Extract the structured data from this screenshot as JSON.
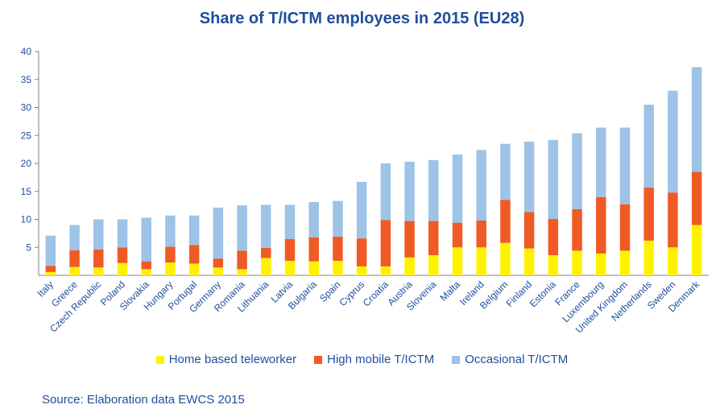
{
  "chart_data": {
    "type": "bar",
    "stacked": true,
    "title": "Share of T/ICTM employees in 2015 (EU28)",
    "xlabel": "",
    "ylabel": "",
    "ylim": [
      0,
      40
    ],
    "yticks": [
      5,
      10,
      15,
      20,
      25,
      30,
      35,
      40
    ],
    "grid": false,
    "legend_position": "bottom",
    "categories": [
      "Italy",
      "Greece",
      "Czech Republic",
      "Poland",
      "Slovakia",
      "Hungary",
      "Portugal",
      "Germany",
      "Romania",
      "Lithuania",
      "Latvia",
      "Bulgaria",
      "Spain",
      "Cyprus",
      "Croatia",
      "Austria",
      "Slovenia",
      "Malta",
      "Ireland",
      "Belgium",
      "Finland",
      "Estonia",
      "France",
      "Luxembourg",
      "United Kingdom",
      "Netherlands",
      "Sweden",
      "Denmark"
    ],
    "series": [
      {
        "name": "Home based teleworker",
        "color": "#FFF200",
        "values": [
          0.6,
          1.5,
          1.4,
          2.2,
          1.1,
          2.3,
          2.1,
          1.4,
          1.1,
          3.1,
          2.6,
          2.5,
          2.6,
          1.6,
          1.6,
          3.2,
          3.6,
          5.0,
          5.0,
          5.8,
          4.8,
          3.6,
          4.4,
          3.9,
          4.4,
          6.2,
          5.0,
          9.0
        ]
      },
      {
        "name": "High mobile T/ICTM",
        "color": "#F05A24",
        "values": [
          1.1,
          3.0,
          3.2,
          2.8,
          1.4,
          2.8,
          3.3,
          1.6,
          3.3,
          1.8,
          3.9,
          4.3,
          4.3,
          5.0,
          8.3,
          6.5,
          6.1,
          4.4,
          4.8,
          7.7,
          6.5,
          6.5,
          7.4,
          10.1,
          8.3,
          9.5,
          9.8,
          9.5
        ]
      },
      {
        "name": "Occasional T/ICTM",
        "color": "#9DC3E6",
        "values": [
          5.4,
          4.5,
          5.4,
          5.0,
          7.8,
          5.6,
          5.3,
          9.1,
          8.1,
          7.7,
          6.1,
          6.3,
          6.4,
          10.1,
          10.1,
          10.6,
          10.9,
          12.2,
          12.6,
          10.0,
          12.6,
          14.1,
          13.6,
          12.4,
          13.7,
          14.8,
          18.2,
          18.7
        ]
      }
    ]
  },
  "source": "Source: Elaboration data EWCS 2015"
}
